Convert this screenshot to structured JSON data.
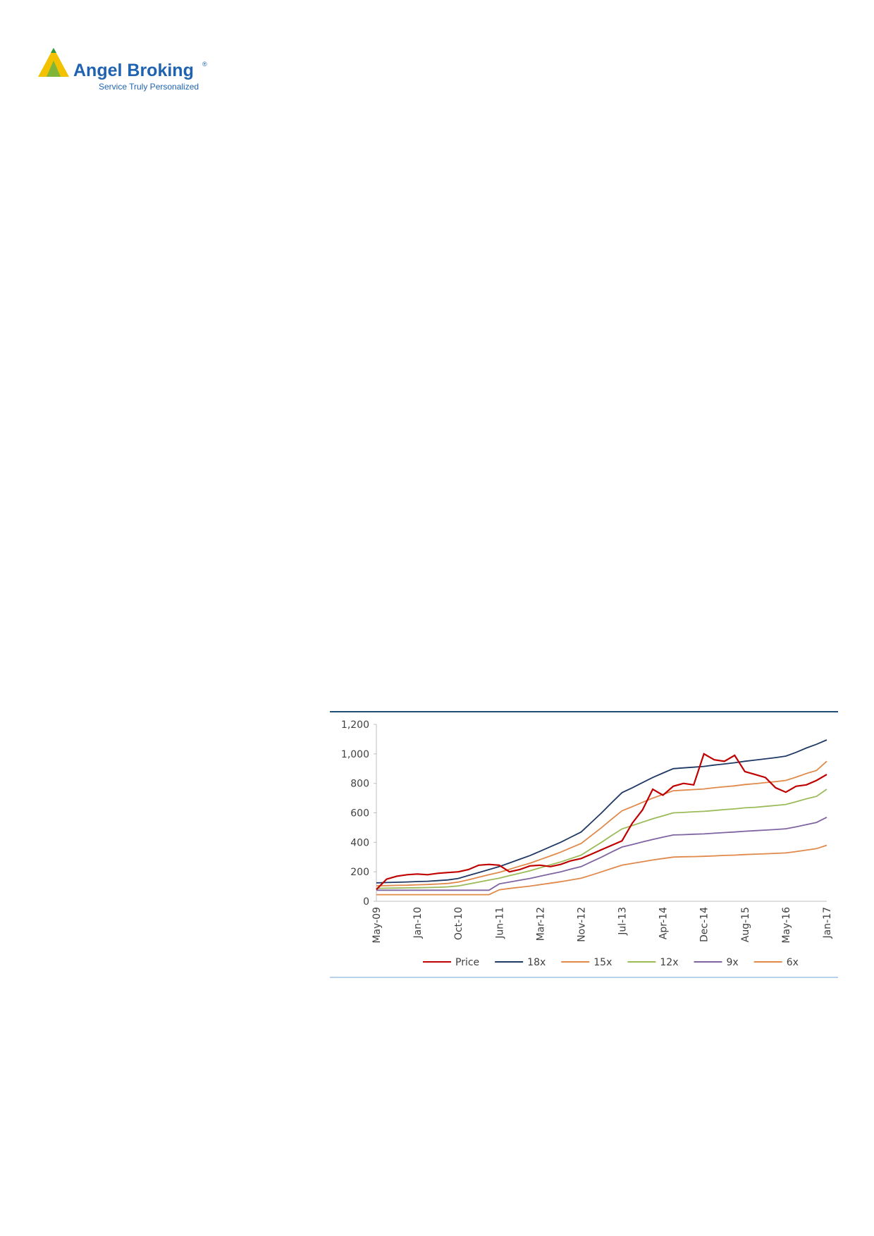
{
  "header": {
    "brand": "Angel Broking",
    "registered": "®",
    "tagline": "Service Truly Personalized"
  },
  "chart_data": {
    "type": "line",
    "categories": [
      "May-09",
      null,
      null,
      null,
      "Jan-10",
      null,
      null,
      null,
      "Oct-10",
      null,
      null,
      null,
      "Jun-11",
      null,
      null,
      null,
      "Mar-12",
      null,
      null,
      null,
      "Nov-12",
      null,
      null,
      null,
      "Jul-13",
      null,
      null,
      null,
      "Apr-14",
      null,
      null,
      null,
      "Dec-14",
      null,
      null,
      null,
      "Aug-15",
      null,
      null,
      null,
      "May-16",
      null,
      null,
      null,
      "Jan-17"
    ],
    "series": [
      {
        "name": "Price",
        "color": "#c00000",
        "values": [
          80,
          150,
          170,
          180,
          185,
          180,
          190,
          195,
          200,
          215,
          245,
          250,
          245,
          200,
          215,
          240,
          245,
          235,
          250,
          275,
          290,
          320,
          350,
          380,
          410,
          530,
          620,
          760,
          720,
          780,
          800,
          790,
          1000,
          960,
          950,
          990,
          880,
          860,
          840,
          770,
          740,
          780,
          790,
          820,
          860
        ]
      },
      {
        "name": "18x",
        "color": "#1f3864",
        "values": [
          125,
          127,
          129,
          131,
          134,
          136,
          140,
          145,
          155,
          175,
          195,
          215,
          235,
          260,
          285,
          310,
          340,
          370,
          400,
          435,
          470,
          535,
          600,
          670,
          737,
          770,
          805,
          840,
          870,
          900,
          905,
          910,
          915,
          924,
          932,
          940,
          950,
          958,
          966,
          975,
          985,
          1010,
          1040,
          1065,
          1095
        ]
      },
      {
        "name": "15x",
        "color": "#e0894b",
        "values": [
          105,
          106,
          108,
          109,
          112,
          114,
          117,
          121,
          130,
          146,
          163,
          180,
          196,
          217,
          238,
          258,
          283,
          308,
          333,
          363,
          392,
          446,
          500,
          558,
          614,
          642,
          671,
          700,
          725,
          750,
          754,
          758,
          762,
          770,
          777,
          783,
          792,
          798,
          805,
          812,
          820,
          842,
          867,
          888,
          950
        ]
      },
      {
        "name": "12x",
        "color": "#9bbb59",
        "values": [
          88,
          89,
          90,
          91,
          92,
          93,
          95,
          98,
          104,
          117,
          130,
          144,
          157,
          174,
          190,
          207,
          227,
          247,
          267,
          290,
          313,
          357,
          400,
          447,
          491,
          514,
          537,
          560,
          580,
          600,
          603,
          607,
          610,
          616,
          622,
          627,
          634,
          638,
          644,
          650,
          657,
          675,
          695,
          712,
          760
        ]
      },
      {
        "name": "9x",
        "color": "#8064a2",
        "values": [
          75,
          75,
          75,
          75,
          75,
          75,
          75,
          75,
          75,
          75,
          75,
          75,
          118,
          130,
          143,
          155,
          170,
          185,
          200,
          218,
          235,
          268,
          300,
          335,
          368,
          385,
          403,
          420,
          435,
          450,
          452,
          455,
          457,
          462,
          466,
          470,
          475,
          479,
          483,
          487,
          492,
          505,
          520,
          535,
          570
        ]
      },
      {
        "name": "6x",
        "color": "#e0894b",
        "values": [
          45,
          45,
          45,
          45,
          45,
          45,
          45,
          45,
          45,
          45,
          45,
          45,
          78,
          87,
          95,
          103,
          113,
          123,
          133,
          145,
          157,
          178,
          200,
          223,
          245,
          257,
          268,
          280,
          290,
          300,
          302,
          303,
          305,
          308,
          311,
          313,
          317,
          320,
          322,
          325,
          328,
          337,
          347,
          357,
          380
        ]
      }
    ],
    "ylim": [
      0,
      1200
    ],
    "yticks": [
      0,
      200,
      400,
      600,
      800,
      {
        "value": 1000,
        "label": "1,000"
      },
      {
        "value": 1200,
        "label": "1,200"
      }
    ],
    "grid": false,
    "legend": "bottom"
  }
}
